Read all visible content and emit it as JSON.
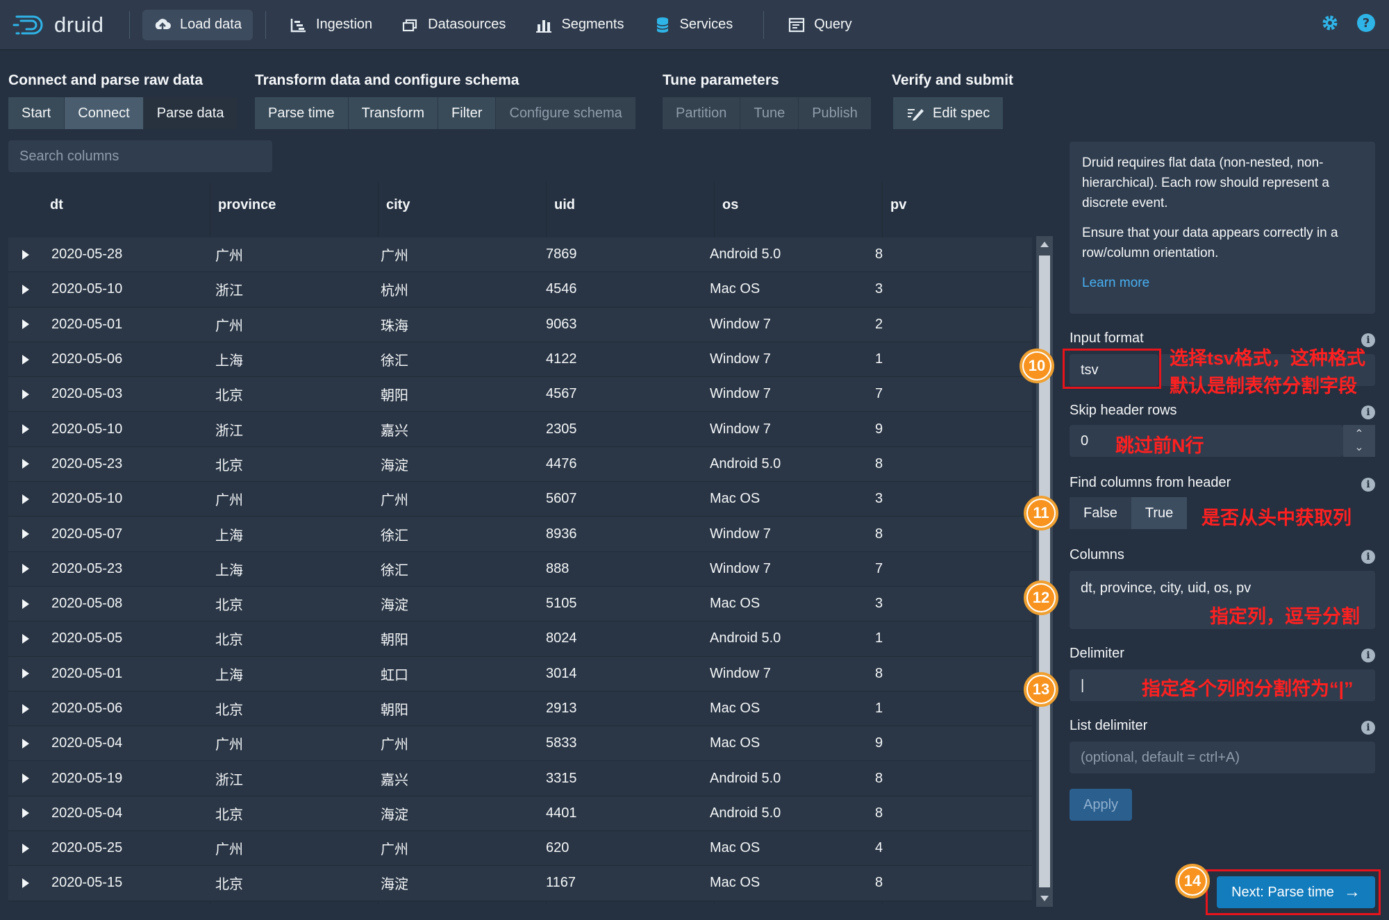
{
  "nav": {
    "brand": "druid",
    "items": [
      {
        "label": "Load data",
        "icon": "cloud-upload-icon",
        "active": true
      },
      {
        "label": "Ingestion",
        "icon": "gantt-chart-icon"
      },
      {
        "label": "Datasources",
        "icon": "multi-select-icon"
      },
      {
        "label": "Segments",
        "icon": "stacked-chart-icon"
      },
      {
        "label": "Services",
        "icon": "database-icon"
      },
      {
        "label": "Query",
        "icon": "application-icon"
      }
    ],
    "right_icons": [
      "gear-icon",
      "help-icon"
    ]
  },
  "steps": {
    "section1": {
      "title": "Connect and parse raw data",
      "buttons": [
        "Start",
        "Connect",
        "Parse data"
      ]
    },
    "section2": {
      "title": "Transform data and configure schema",
      "buttons": [
        "Parse time",
        "Transform",
        "Filter",
        "Configure schema"
      ]
    },
    "section3": {
      "title": "Tune parameters",
      "buttons": [
        "Partition",
        "Tune",
        "Publish"
      ]
    },
    "section4": {
      "title": "Verify and submit",
      "buttons": [
        "Edit spec"
      ]
    }
  },
  "search": {
    "placeholder": "Search columns"
  },
  "table": {
    "columns": [
      "dt",
      "province",
      "city",
      "uid",
      "os",
      "pv"
    ],
    "rows": [
      [
        "2020-05-28",
        "广州",
        "广州",
        "7869",
        "Android 5.0",
        "8"
      ],
      [
        "2020-05-10",
        "浙江",
        "杭州",
        "4546",
        "Mac OS",
        "3"
      ],
      [
        "2020-05-01",
        "广州",
        "珠海",
        "9063",
        "Window 7",
        "2"
      ],
      [
        "2020-05-06",
        "上海",
        "徐汇",
        "4122",
        "Window 7",
        "1"
      ],
      [
        "2020-05-03",
        "北京",
        "朝阳",
        "4567",
        "Window 7",
        "7"
      ],
      [
        "2020-05-10",
        "浙江",
        "嘉兴",
        "2305",
        "Window 7",
        "9"
      ],
      [
        "2020-05-23",
        "北京",
        "海淀",
        "4476",
        "Android 5.0",
        "8"
      ],
      [
        "2020-05-10",
        "广州",
        "广州",
        "5607",
        "Mac OS",
        "3"
      ],
      [
        "2020-05-07",
        "上海",
        "徐汇",
        "8936",
        "Window 7",
        "8"
      ],
      [
        "2020-05-23",
        "上海",
        "徐汇",
        "888",
        "Window 7",
        "7"
      ],
      [
        "2020-05-08",
        "北京",
        "海淀",
        "5105",
        "Mac OS",
        "3"
      ],
      [
        "2020-05-05",
        "北京",
        "朝阳",
        "8024",
        "Android 5.0",
        "1"
      ],
      [
        "2020-05-01",
        "上海",
        "虹口",
        "3014",
        "Window 7",
        "8"
      ],
      [
        "2020-05-06",
        "北京",
        "朝阳",
        "2913",
        "Mac OS",
        "1"
      ],
      [
        "2020-05-04",
        "广州",
        "广州",
        "5833",
        "Mac OS",
        "9"
      ],
      [
        "2020-05-19",
        "浙江",
        "嘉兴",
        "3315",
        "Android 5.0",
        "8"
      ],
      [
        "2020-05-04",
        "北京",
        "海淀",
        "4401",
        "Android 5.0",
        "8"
      ],
      [
        "2020-05-25",
        "广州",
        "广州",
        "620",
        "Mac OS",
        "4"
      ],
      [
        "2020-05-15",
        "北京",
        "海淀",
        "1167",
        "Mac OS",
        "8"
      ]
    ]
  },
  "panel": {
    "info_p1": "Druid requires flat data (non-nested, non-hierarchical). Each row should represent a discrete event.",
    "info_p2": "Ensure that your data appears correctly in a row/column orientation.",
    "learn_more": "Learn more",
    "input_format_label": "Input format",
    "input_format_value": "tsv",
    "skip_header_label": "Skip header rows",
    "skip_header_value": "0",
    "find_columns_label": "Find columns from header",
    "toggle_false": "False",
    "toggle_true": "True",
    "columns_label": "Columns",
    "columns_value": "dt, province, city, uid, os, pv",
    "delimiter_label": "Delimiter",
    "delimiter_value": "|",
    "list_delimiter_label": "List delimiter",
    "list_delimiter_placeholder": "(optional, default = ctrl+A)",
    "apply": "Apply",
    "next": "Next: Parse time"
  },
  "annotations": {
    "n10": "10",
    "n11": "11",
    "n12": "12",
    "n13": "13",
    "n14": "14",
    "note10a": "选择tsv格式，这种格式",
    "note10b": "默认是制表符分割字段",
    "note_skip": "跳过前N行",
    "note11": "是否从头中获取列",
    "note12": "指定列，逗号分割",
    "note13": "指定各个列的分割符为“|”"
  },
  "colors": {
    "background": "#253040",
    "accent": "#137cbd",
    "annotation": "#e8141c",
    "badge": "#f7931e"
  }
}
